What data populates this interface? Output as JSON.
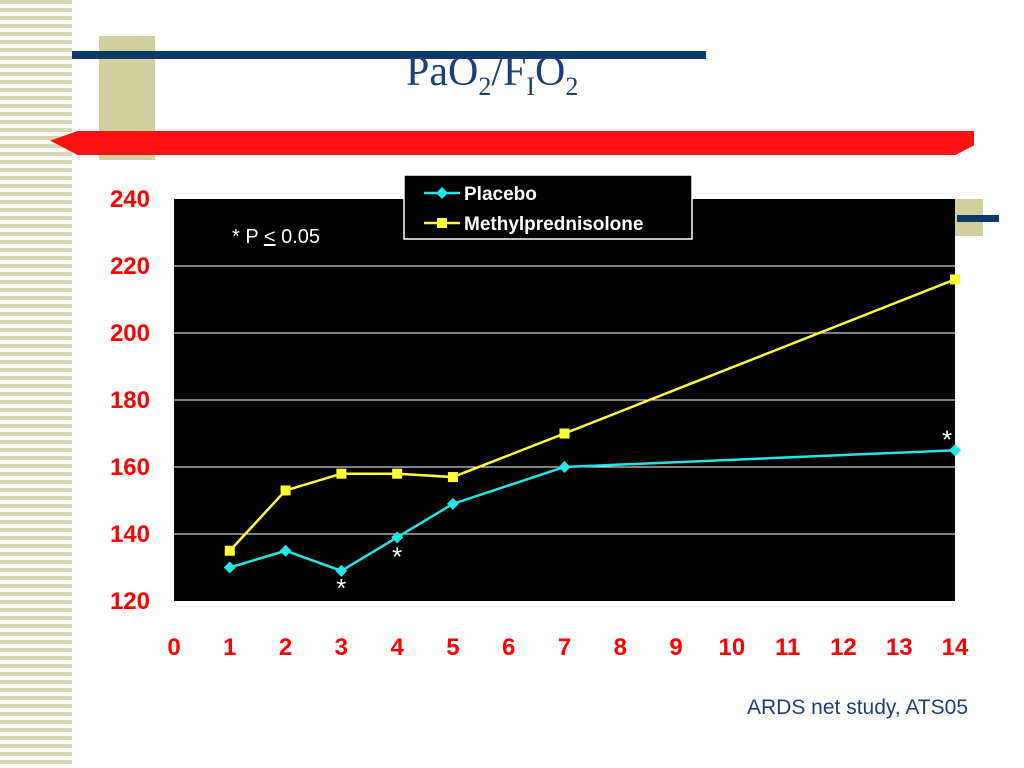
{
  "slide": {
    "title_base": "PaO",
    "title_sub1": "2",
    "title_mid": "/F",
    "title_sub2": "I",
    "title_end": "O",
    "title_sub3": "2",
    "source": "ARDS net study, ATS05"
  },
  "chart_data": {
    "type": "line",
    "x": [
      1,
      2,
      3,
      4,
      5,
      7,
      14
    ],
    "x_ticks": [
      0,
      1,
      2,
      3,
      4,
      5,
      6,
      7,
      8,
      9,
      10,
      11,
      12,
      13,
      14
    ],
    "y_ticks": [
      120,
      140,
      160,
      180,
      200,
      220,
      240
    ],
    "ylim": [
      120,
      240
    ],
    "grid": true,
    "legend_position": "top-center",
    "annotation_lead": "* P ",
    "annotation_symbol": "<",
    "annotation_value": " 0.05",
    "series": [
      {
        "name": "Placebo",
        "color": "#22e5e8",
        "marker": "diamond",
        "values": [
          130,
          135,
          129,
          139,
          149,
          160,
          165
        ]
      },
      {
        "name": "Methylprednisolone",
        "color": "#ffff33",
        "marker": "square",
        "values": [
          135,
          153,
          158,
          158,
          157,
          170,
          216
        ]
      }
    ],
    "significance_marks": [
      {
        "x": 3,
        "label": "*"
      },
      {
        "x": 4,
        "label": "*"
      },
      {
        "x": 14,
        "label": "*"
      }
    ]
  }
}
